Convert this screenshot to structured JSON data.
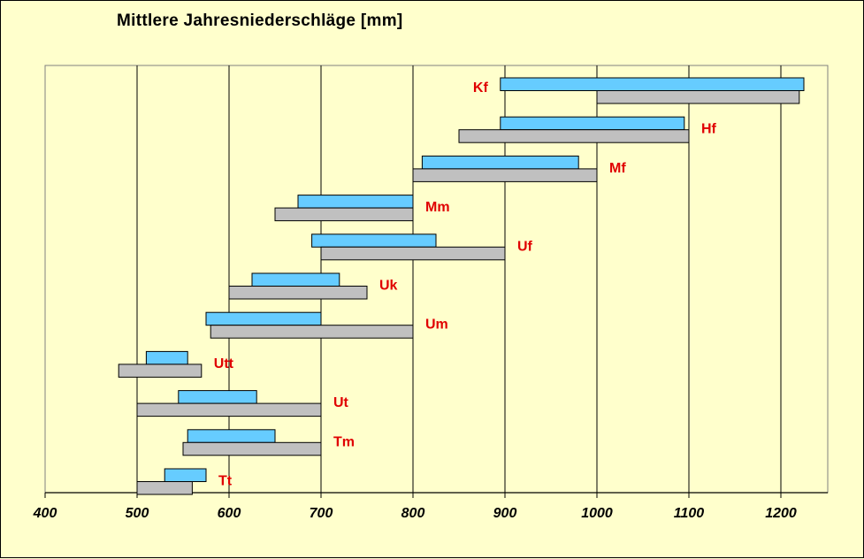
{
  "chart_data": {
    "type": "bar",
    "orientation": "horizontal-range",
    "title": "Mittlere Jahresniederschläge [mm]",
    "xlim": [
      400,
      1250
    ],
    "x_ticks": [
      "400",
      "500",
      "600",
      "700",
      "800",
      "900",
      "1000",
      "1100",
      "1200"
    ],
    "grid": "vertical",
    "colors": {
      "series_a": "#66ccff",
      "series_b": "#c0c0c0",
      "label": "#e00000",
      "background": "#ffffcc"
    },
    "categories": [
      "Kf",
      "Hf",
      "Mf",
      "Mm",
      "Uf",
      "Uk",
      "Um",
      "Utt",
      "Ut",
      "Tm",
      "Tt"
    ],
    "series": [
      {
        "values": [
          [
            895,
            1225
          ],
          [
            895,
            1095
          ],
          [
            810,
            980
          ],
          [
            675,
            800
          ],
          [
            690,
            825
          ],
          [
            625,
            720
          ],
          [
            575,
            700
          ],
          [
            510,
            555
          ],
          [
            545,
            630
          ],
          [
            555,
            650
          ],
          [
            530,
            575
          ]
        ]
      },
      {
        "values": [
          [
            1000,
            1220
          ],
          [
            850,
            1100
          ],
          [
            800,
            1000
          ],
          [
            650,
            800
          ],
          [
            700,
            900
          ],
          [
            600,
            750
          ],
          [
            580,
            800
          ],
          [
            480,
            570
          ],
          [
            500,
            700
          ],
          [
            550,
            700
          ],
          [
            500,
            560
          ]
        ]
      }
    ]
  }
}
